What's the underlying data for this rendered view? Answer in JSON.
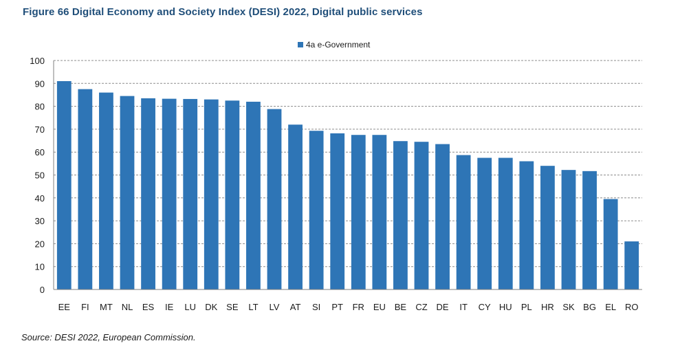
{
  "title": "Figure 66 Digital Economy and Society Index (DESI) 2022, Digital public services",
  "source": "Source: DESI 2022, European Commission.",
  "colors": {
    "bar": "#2e75b6",
    "grid": "#8c8c8c",
    "title": "#1f4e79"
  },
  "chart_data": {
    "type": "bar",
    "categories": [
      "EE",
      "FI",
      "MT",
      "NL",
      "ES",
      "IE",
      "LU",
      "DK",
      "SE",
      "LT",
      "LV",
      "AT",
      "SI",
      "PT",
      "FR",
      "EU",
      "BE",
      "CZ",
      "DE",
      "IT",
      "CY",
      "HU",
      "PL",
      "HR",
      "SK",
      "BG",
      "EL",
      "RO"
    ],
    "series": [
      {
        "name": "4a e-Government",
        "values": [
          91,
          87.5,
          86,
          84.5,
          83.5,
          83.3,
          83.2,
          83,
          82.5,
          82,
          78.8,
          72,
          69.3,
          68.2,
          67.5,
          67.5,
          64.8,
          64.5,
          63.5,
          58.7,
          57.5,
          57.5,
          56,
          54,
          52.2,
          51.7,
          39.5,
          21
        ]
      }
    ],
    "yticks": [
      0,
      10,
      20,
      30,
      40,
      50,
      60,
      70,
      80,
      90,
      100
    ],
    "ylim": [
      0,
      100
    ],
    "grid": true,
    "legend": "top-center"
  }
}
